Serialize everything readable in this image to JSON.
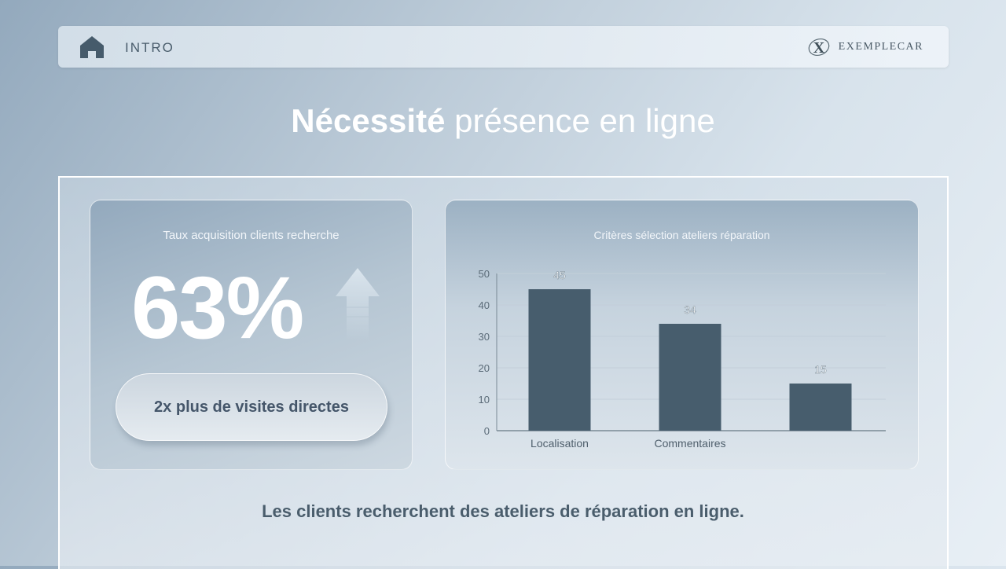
{
  "header": {
    "section": "INTRO",
    "brand": "EXEMPLECAR"
  },
  "title": {
    "bold": "Nécessité",
    "rest": " présence en ligne"
  },
  "kpi_card": {
    "title": "Taux acquisition clients recherche",
    "value": "63%",
    "pill": "2x plus de visites directes"
  },
  "chart_card": {
    "title": "Critères sélection ateliers réparation"
  },
  "footer": "Les clients recherchent des ateliers de réparation en ligne.",
  "colors": {
    "bar": "#475d6d",
    "text_dark": "#4a5d6c"
  },
  "chart_data": {
    "type": "bar",
    "title": "Critères sélection ateliers réparation",
    "categories": [
      "Localisation",
      "Commentaires",
      ""
    ],
    "values": [
      45,
      34,
      15
    ],
    "xlabel": "",
    "ylabel": "",
    "ylim": [
      0,
      50
    ],
    "yticks": [
      0,
      10,
      20,
      30,
      40,
      50
    ],
    "grid": true,
    "data_labels": true
  }
}
